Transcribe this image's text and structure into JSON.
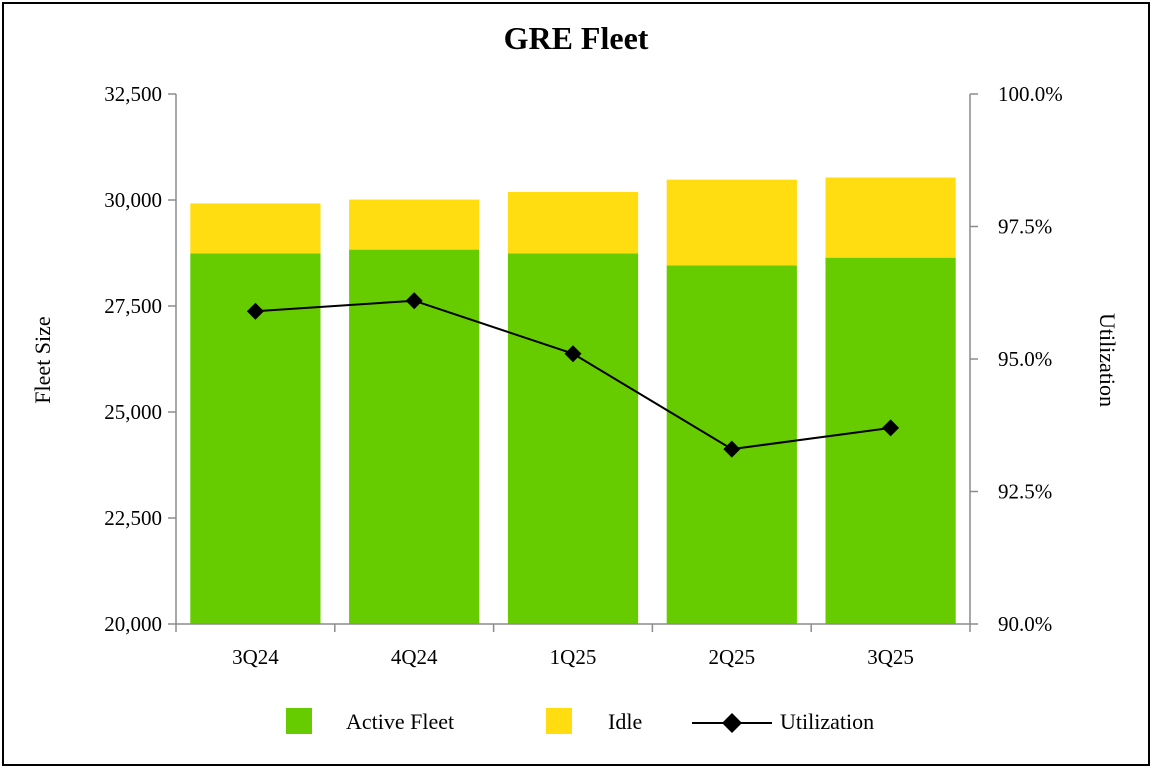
{
  "chart_data": {
    "type": "bar",
    "title": "GRE Fleet",
    "categories": [
      "3Q24",
      "4Q24",
      "1Q25",
      "2Q25",
      "3Q25"
    ],
    "series": [
      {
        "name": "Active Fleet",
        "type": "stacked-bar",
        "axis": "left",
        "color": "#66cc00",
        "values": [
          28740,
          28830,
          28740,
          28460,
          28640
        ]
      },
      {
        "name": "Idle",
        "type": "stacked-bar",
        "axis": "left",
        "color": "#ffdd11",
        "values": [
          1180,
          1180,
          1450,
          2020,
          1890
        ]
      },
      {
        "name": "Utilization",
        "type": "line",
        "axis": "right",
        "color": "#000000",
        "marker": "diamond",
        "values": [
          95.9,
          96.1,
          95.1,
          93.3,
          93.7
        ]
      }
    ],
    "ylabel": "Fleet Size",
    "ylim": [
      20000,
      32500
    ],
    "yticks": [
      "20,000",
      "22,500",
      "25,000",
      "27,500",
      "30,000",
      "32,500"
    ],
    "ylabel_right": "Utilization",
    "ylim_right": [
      90.0,
      100.0
    ],
    "yticks_right": [
      "90.0%",
      "92.5%",
      "95.0%",
      "97.5%",
      "100.0%"
    ],
    "grid": false,
    "legend_position": "bottom"
  }
}
